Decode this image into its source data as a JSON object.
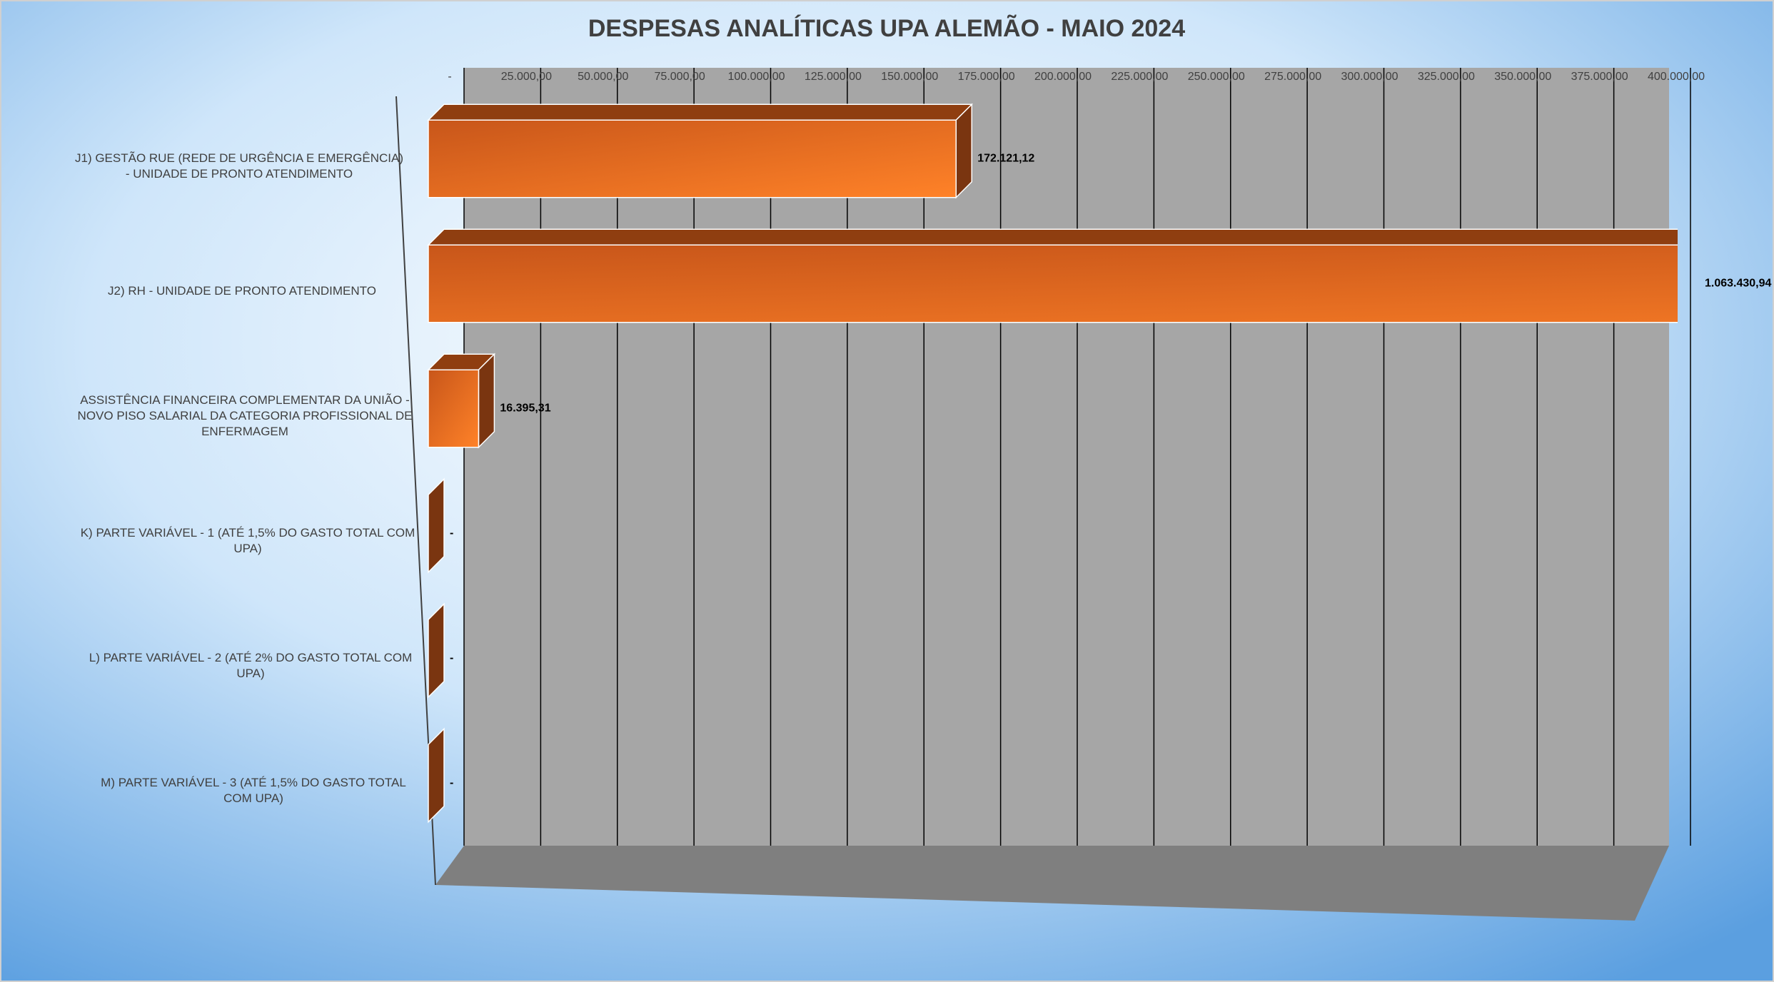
{
  "chart_data": {
    "type": "bar3d_horizontal",
    "title": "DESPESAS ANALÍTICAS UPA ALEMÃO - MAIO 2024",
    "categories": [
      "J1) GESTÃO RUE (REDE DE URGÊNCIA E EMERGÊNCIA) - UNIDADE DE PRONTO ATENDIMENTO",
      "J2) RH - UNIDADE DE PRONTO ATENDIMENTO",
      "ASSISTÊNCIA FINANCEIRA COMPLEMENTAR DA UNIÃO - NOVO PISO SALARIAL DA CATEGORIA PROFISSIONAL DE ENFERMAGEM",
      "K) PARTE VARIÁVEL - 1 (ATÉ 1,5% DO GASTO TOTAL COM UPA)",
      "L) PARTE VARIÁVEL - 2 (ATÉ 2% DO GASTO TOTAL COM UPA)",
      "M) PARTE VARIÁVEL - 3 (ATÉ 1,5% DO GASTO TOTAL COM UPA)"
    ],
    "values": [
      172121.12,
      1063430.94,
      16395.31,
      0,
      0,
      0
    ],
    "value_labels": [
      "172.121,12",
      "1.063.430,94",
      "16.395,31",
      "-",
      "-",
      "-"
    ],
    "color": "#f07424",
    "xlim": [
      0,
      400000
    ],
    "xticks": [
      {
        "value": 0,
        "label": "-"
      },
      {
        "value": 25000,
        "label": "25.000,00"
      },
      {
        "value": 50000,
        "label": "50.000,00"
      },
      {
        "value": 75000,
        "label": "75.000,00"
      },
      {
        "value": 100000,
        "label": "100.000,00"
      },
      {
        "value": 125000,
        "label": "125.000,00"
      },
      {
        "value": 150000,
        "label": "150.000,00"
      },
      {
        "value": 175000,
        "label": "175.000,00"
      },
      {
        "value": 200000,
        "label": "200.000,00"
      },
      {
        "value": 225000,
        "label": "225.000,00"
      },
      {
        "value": 250000,
        "label": "250.000,00"
      },
      {
        "value": 275000,
        "label": "275.000,00"
      },
      {
        "value": 300000,
        "label": "300.000,00"
      },
      {
        "value": 325000,
        "label": "325.000,00"
      },
      {
        "value": 350000,
        "label": "350.000,00"
      },
      {
        "value": 375000,
        "label": "375.000,00"
      },
      {
        "value": 400000,
        "label": "400.000,00"
      }
    ],
    "grid": true
  }
}
